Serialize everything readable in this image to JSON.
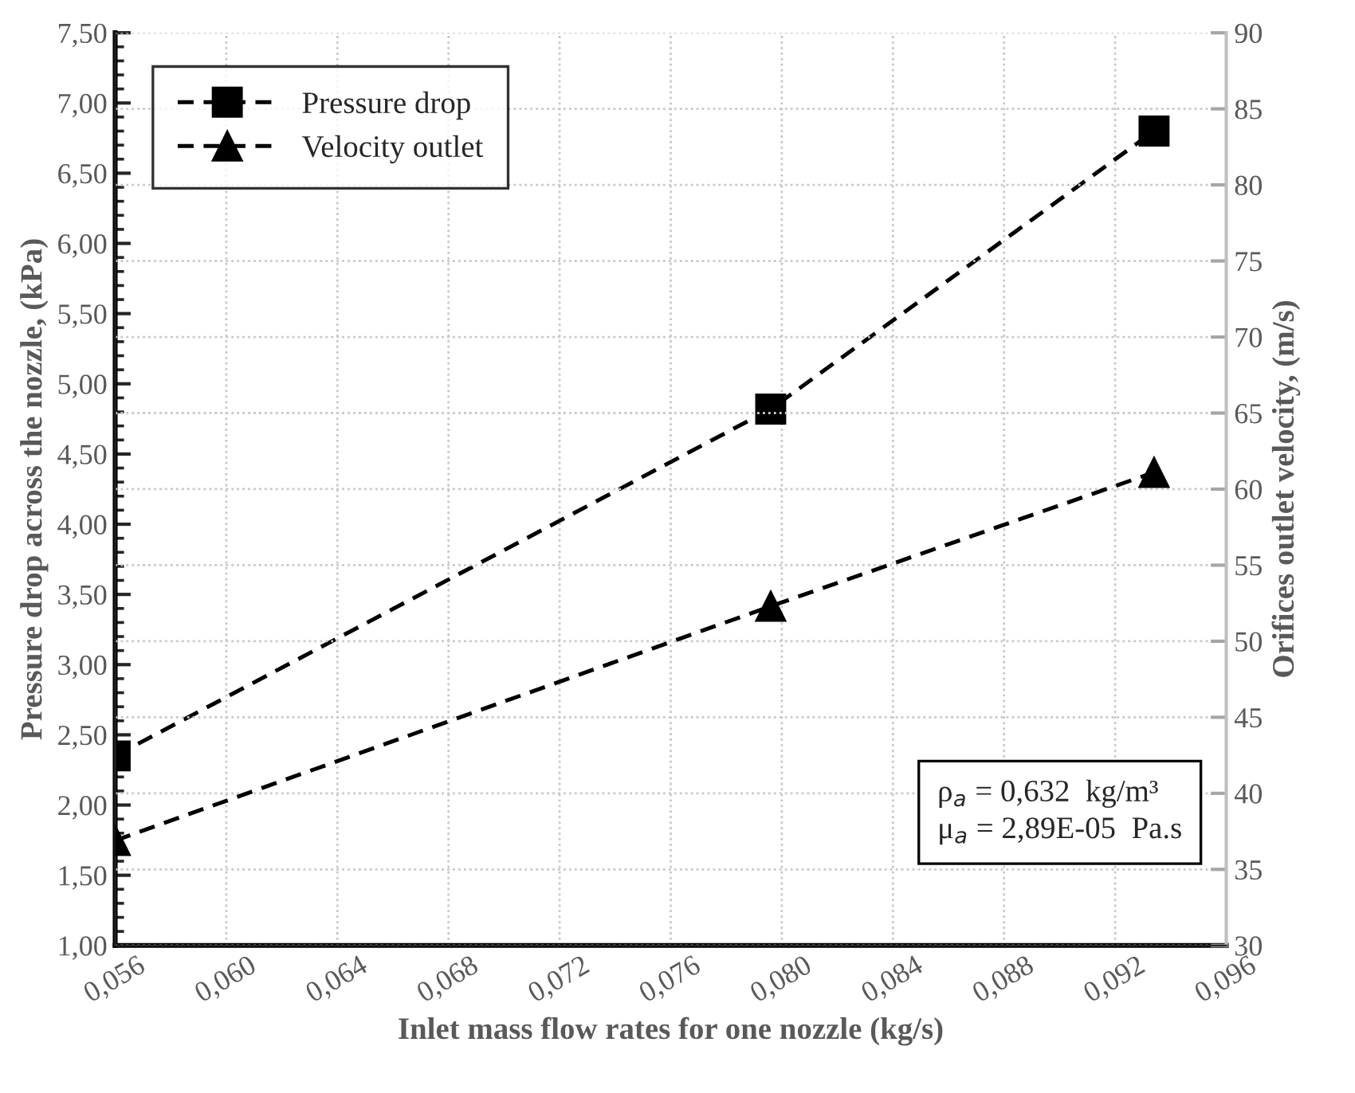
{
  "chart_data": {
    "type": "line",
    "xlabel": "Inlet mass flow rates for one nozzle (kg/s)",
    "ylabel": "Pressure drop across the nozzle, (kPa)",
    "y2label": "Orifices outlet velocity, (m/s)",
    "x": [
      0.056,
      0.0796,
      0.0934
    ],
    "series": [
      {
        "name": "Pressure drop",
        "color": "#000000",
        "values": [
          2.35,
          4.82,
          6.8
        ],
        "marker": "square"
      },
      {
        "name": "Velocity outlet",
        "color": "#000000",
        "values": [
          36.9,
          52.3,
          61.1
        ],
        "marker": "triangle",
        "axis": "y2"
      }
    ],
    "line_style": "dashed",
    "xlim": [
      0.056,
      0.096
    ],
    "xticks": [
      {
        "value": 0.056,
        "label": "0,056"
      },
      {
        "value": 0.06,
        "label": "0,060"
      },
      {
        "value": 0.064,
        "label": "0,064"
      },
      {
        "value": 0.068,
        "label": "0,068"
      },
      {
        "value": 0.072,
        "label": "0,072"
      },
      {
        "value": 0.076,
        "label": "0,076"
      },
      {
        "value": 0.08,
        "label": "0,080"
      },
      {
        "value": 0.084,
        "label": "0,084"
      },
      {
        "value": 0.088,
        "label": "0,088"
      },
      {
        "value": 0.092,
        "label": "0,092"
      },
      {
        "value": 0.096,
        "label": "0,096"
      }
    ],
    "ylim": [
      1.0,
      7.5
    ],
    "yticks": [
      {
        "value": 1.0,
        "label": "1,00"
      },
      {
        "value": 1.5,
        "label": "1,50"
      },
      {
        "value": 2.0,
        "label": "2,00"
      },
      {
        "value": 2.5,
        "label": "2,50"
      },
      {
        "value": 3.0,
        "label": "3,00"
      },
      {
        "value": 3.5,
        "label": "3,50"
      },
      {
        "value": 4.0,
        "label": "4,00"
      },
      {
        "value": 4.5,
        "label": "4,50"
      },
      {
        "value": 5.0,
        "label": "5,00"
      },
      {
        "value": 5.5,
        "label": "5,50"
      },
      {
        "value": 6.0,
        "label": "6,00"
      },
      {
        "value": 6.5,
        "label": "6,50"
      },
      {
        "value": 7.0,
        "label": "7,00"
      },
      {
        "value": 7.5,
        "label": "7,50"
      }
    ],
    "y2lim": [
      30,
      90
    ],
    "y2ticks": [
      30,
      35,
      40,
      45,
      50,
      55,
      60,
      65,
      70,
      75,
      80,
      85,
      90
    ],
    "grid": true,
    "legend": "top left",
    "annotations": [
      "ρ$_{a}$ = 0,632  kg/m³\nμ$_{a}$ = 2,89E-05  Pa.s"
    ]
  }
}
